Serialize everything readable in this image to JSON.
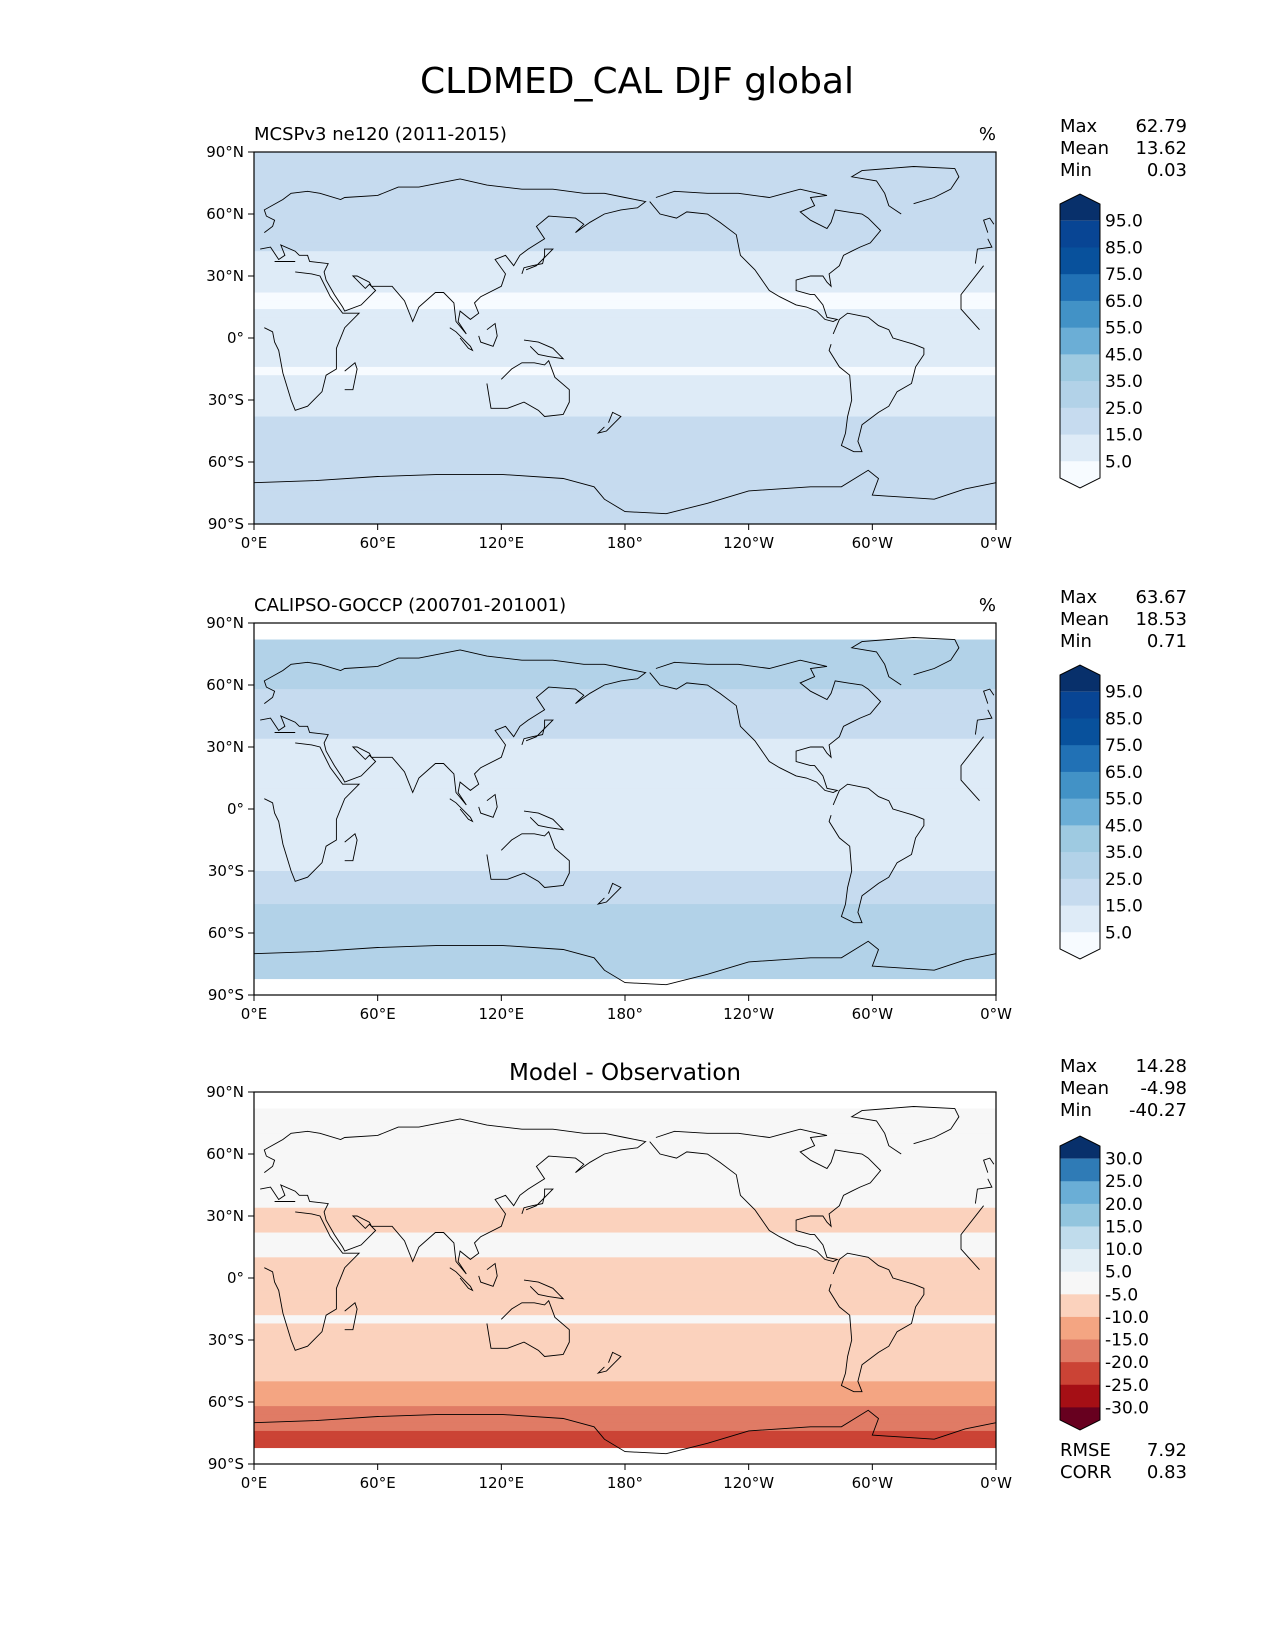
{
  "figure": {
    "title": "CLDMED_CAL DJF global"
  },
  "colors": {
    "blues": [
      "#f7fbff",
      "#deebf7",
      "#c6dbef",
      "#b2d2e8",
      "#9ecae1",
      "#6baed6",
      "#4292c6",
      "#2171b5",
      "#08519c",
      "#084594",
      "#08306b"
    ],
    "diff": [
      "#67001f",
      "#a50f15",
      "#cb4335",
      "#e07b65",
      "#f4a582",
      "#fbd2bd",
      "#f7f7f7",
      "#e3eef5",
      "#c0dcec",
      "#92c5de",
      "#6aaed6",
      "#2f7bb6",
      "#08306b"
    ],
    "coastline": "#000000"
  },
  "chart_data": [
    {
      "type": "heatmap",
      "panel": "top",
      "title": "MCSPv3 ne120 (2011-2015)",
      "units": "%",
      "xticks": [
        "0°E",
        "60°E",
        "120°E",
        "180°",
        "120°W",
        "60°W",
        "0°W"
      ],
      "yticks": [
        "90°N",
        "60°N",
        "30°N",
        "0°",
        "30°S",
        "60°S",
        "90°S"
      ],
      "xlim": [
        0,
        360
      ],
      "ylim": [
        -90,
        90
      ],
      "stats": [
        {
          "label": "Max",
          "value": "62.79"
        },
        {
          "label": "Mean",
          "value": "13.62"
        },
        {
          "label": "Min",
          "value": "0.03"
        }
      ],
      "colorbar": {
        "levels": [
          "95.0",
          "85.0",
          "75.0",
          "65.0",
          "55.0",
          "45.0",
          "35.0",
          "25.0",
          "15.0",
          "5.0"
        ],
        "extend": "both"
      },
      "zonal_profile": [
        {
          "lat": 85,
          "value": 22
        },
        {
          "lat": 70,
          "value": 20
        },
        {
          "lat": 55,
          "value": 22
        },
        {
          "lat": 45,
          "value": 18
        },
        {
          "lat": 30,
          "value": 6
        },
        {
          "lat": 15,
          "value": 4
        },
        {
          "lat": 5,
          "value": 12
        },
        {
          "lat": -5,
          "value": 8
        },
        {
          "lat": -15,
          "value": 4
        },
        {
          "lat": -25,
          "value": 8
        },
        {
          "lat": -40,
          "value": 15
        },
        {
          "lat": -55,
          "value": 22
        },
        {
          "lat": -65,
          "value": 20
        },
        {
          "lat": -80,
          "value": 15
        }
      ]
    },
    {
      "type": "heatmap",
      "panel": "middle",
      "title": "CALIPSO-GOCCP (200701-201001)",
      "units": "%",
      "xticks": [
        "0°E",
        "60°E",
        "120°E",
        "180°",
        "120°W",
        "60°W",
        "0°W"
      ],
      "yticks": [
        "90°N",
        "60°N",
        "30°N",
        "0°",
        "30°S",
        "60°S",
        "90°S"
      ],
      "xlim": [
        0,
        360
      ],
      "ylim": [
        -90,
        90
      ],
      "data_lat_range": [
        -82,
        82
      ],
      "stats": [
        {
          "label": "Max",
          "value": "63.67"
        },
        {
          "label": "Mean",
          "value": "18.53"
        },
        {
          "label": "Min",
          "value": "0.71"
        }
      ],
      "colorbar": {
        "levels": [
          "95.0",
          "85.0",
          "75.0",
          "65.0",
          "55.0",
          "45.0",
          "35.0",
          "25.0",
          "15.0",
          "5.0"
        ],
        "extend": "both"
      },
      "zonal_profile": [
        {
          "lat": 80,
          "value": 25
        },
        {
          "lat": 60,
          "value": 25
        },
        {
          "lat": 45,
          "value": 22
        },
        {
          "lat": 30,
          "value": 12
        },
        {
          "lat": 15,
          "value": 8
        },
        {
          "lat": 5,
          "value": 14
        },
        {
          "lat": -5,
          "value": 10
        },
        {
          "lat": -15,
          "value": 8
        },
        {
          "lat": -25,
          "value": 12
        },
        {
          "lat": -40,
          "value": 22
        },
        {
          "lat": -55,
          "value": 32
        },
        {
          "lat": -65,
          "value": 35
        },
        {
          "lat": -80,
          "value": 30
        }
      ]
    },
    {
      "type": "heatmap",
      "panel": "bottom",
      "title": "Model - Observation",
      "xticks": [
        "0°E",
        "60°E",
        "120°E",
        "180°",
        "120°W",
        "60°W",
        "0°W"
      ],
      "yticks": [
        "90°N",
        "60°N",
        "30°N",
        "0°",
        "30°S",
        "60°S",
        "90°S"
      ],
      "xlim": [
        0,
        360
      ],
      "ylim": [
        -90,
        90
      ],
      "data_lat_range": [
        -82,
        82
      ],
      "stats": [
        {
          "label": "Max",
          "value": "14.28"
        },
        {
          "label": "Mean",
          "value": "-4.98"
        },
        {
          "label": "Min",
          "value": "-40.27"
        }
      ],
      "colorbar": {
        "levels": [
          "30.0",
          "25.0",
          "20.0",
          "15.0",
          "10.0",
          "5.0",
          "-5.0",
          "-10.0",
          "-15.0",
          "-20.0",
          "-25.0",
          "-30.0"
        ],
        "extend": "both"
      },
      "metrics": [
        {
          "label": "RMSE",
          "value": "7.92"
        },
        {
          "label": "CORR",
          "value": "0.83"
        }
      ],
      "zonal_profile": [
        {
          "lat": 80,
          "value": -2
        },
        {
          "lat": 60,
          "value": -4
        },
        {
          "lat": 40,
          "value": -4
        },
        {
          "lat": 28,
          "value": -6
        },
        {
          "lat": 15,
          "value": -3
        },
        {
          "lat": 5,
          "value": -8
        },
        {
          "lat": -5,
          "value": -7
        },
        {
          "lat": -20,
          "value": -5
        },
        {
          "lat": -40,
          "value": -6
        },
        {
          "lat": -55,
          "value": -12
        },
        {
          "lat": -65,
          "value": -16
        },
        {
          "lat": -78,
          "value": -22
        }
      ]
    }
  ]
}
